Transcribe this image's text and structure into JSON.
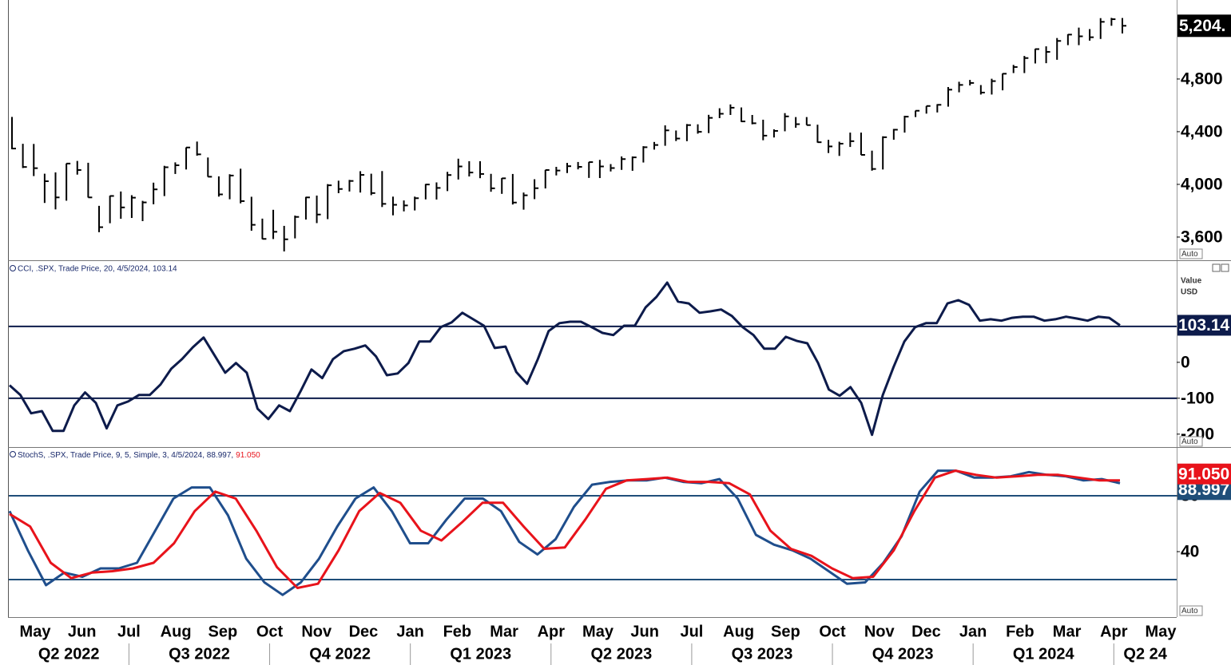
{
  "chart_data": [
    {
      "type": "ohlc",
      "color": "#000000",
      "scale_mode": "Auto",
      "ylim": [
        3430,
        5327
      ],
      "yticks": [
        {
          "value": 3600,
          "label": "3,600"
        },
        {
          "value": 4000,
          "label": "4,000"
        },
        {
          "value": 4400,
          "label": "4,400"
        },
        {
          "value": 4800,
          "label": "4,800"
        }
      ],
      "last_value": {
        "value": 5204,
        "label": "5,204."
      },
      "high": [
        4512,
        4308,
        4307,
        4081,
        4091,
        4159,
        4178,
        4164,
        3837,
        3914,
        3946,
        3918,
        3875,
        4013,
        4141,
        4167,
        4281,
        4325,
        4204,
        4061,
        4077,
        4119,
        3906,
        3740,
        3807,
        3685,
        3763,
        3905,
        3915,
        4002,
        4028,
        4034,
        4100,
        4081,
        4101,
        3907,
        3878,
        3907,
        4003,
        4015,
        4095,
        4195,
        4176,
        4176,
        4080,
        4048,
        4079,
        3938,
        4039,
        4110,
        4133,
        4163,
        4170,
        4170,
        4186,
        4154,
        4212,
        4212,
        4290,
        4322,
        4448,
        4409,
        4458,
        4456,
        4528,
        4578,
        4607,
        4584,
        4527,
        4491,
        4418,
        4541,
        4511,
        4511,
        4453,
        4338,
        4324,
        4393,
        4393,
        4256,
        4365,
        4421,
        4521,
        4560,
        4595,
        4609,
        4739,
        4779,
        4793,
        4754,
        4802,
        4842,
        4907,
        4975,
        5030,
        5048,
        5111,
        5140,
        5190,
        5179,
        5262,
        5264,
        5263
      ],
      "low": [
        4267,
        4124,
        4063,
        3859,
        3810,
        3876,
        4074,
        3900,
        3637,
        3705,
        3739,
        3745,
        3721,
        3849,
        3911,
        4079,
        4113,
        4218,
        4057,
        3907,
        3887,
        3856,
        3648,
        3584,
        3585,
        3491,
        3590,
        3733,
        3706,
        3736,
        3933,
        3946,
        3938,
        3918,
        3828,
        3765,
        3795,
        3802,
        3886,
        3885,
        3949,
        4037,
        4060,
        4047,
        3944,
        3928,
        3847,
        3808,
        3888,
        3969,
        4068,
        4086,
        4114,
        4049,
        4048,
        4098,
        4110,
        4103,
        4166,
        4264,
        4293,
        4329,
        4328,
        4385,
        4389,
        4503,
        4527,
        4474,
        4456,
        4335,
        4356,
        4403,
        4430,
        4450,
        4317,
        4238,
        4216,
        4284,
        4223,
        4104,
        4113,
        4339,
        4393,
        4511,
        4537,
        4546,
        4590,
        4699,
        4751,
        4682,
        4682,
        4714,
        4845,
        4845,
        4918,
        4920,
        4946,
        5057,
        5057,
        5091,
        5104,
        5204,
        5146
      ],
      "close": [
        4272,
        4132,
        4123,
        4024,
        3901,
        4158,
        4109,
        3901,
        3675,
        3912,
        3825,
        3899,
        3863,
        3962,
        4130,
        4145,
        4280,
        4228,
        4058,
        3924,
        4067,
        3873,
        3693,
        3586,
        3640,
        3583,
        3753,
        3901,
        3771,
        3993,
        3965,
        4026,
        4072,
        3934,
        3852,
        3845,
        3840,
        3895,
        3999,
        3973,
        4071,
        4136,
        4090,
        4079,
        3970,
        4046,
        3862,
        3917,
        3971,
        4109,
        4105,
        4138,
        4133,
        4169,
        4136,
        4124,
        4192,
        4205,
        4282,
        4299,
        4410,
        4348,
        4450,
        4399,
        4505,
        4536,
        4582,
        4478,
        4464,
        4370,
        4406,
        4516,
        4457,
        4450,
        4320,
        4288,
        4309,
        4328,
        4224,
        4117,
        4358,
        4415,
        4514,
        4559,
        4595,
        4604,
        4719,
        4755,
        4770,
        4697,
        4784,
        4840,
        4891,
        4959,
        5027,
        5006,
        5089,
        5137,
        5124,
        5117,
        5234,
        5254,
        5204
      ]
    },
    {
      "type": "line",
      "title": "CCI, .SPX, Trade Price, 20, 4/5/2024, 103.14",
      "scale_mode": "Auto",
      "y_unit_labels": [
        "Value",
        "USD"
      ],
      "ylim": [
        -236,
        282
      ],
      "yticks": [
        0,
        -100,
        -200
      ],
      "levels": [
        100,
        -100
      ],
      "level_color": "#0d1b4b",
      "series": [
        {
          "name": "CCI",
          "color": "#0d1b4b",
          "values": [
            -64,
            -91,
            -142,
            -136,
            -191,
            -191,
            -120,
            -84,
            -113,
            -184,
            -120,
            -109,
            -91,
            -91,
            -62,
            -18,
            9,
            42,
            69,
            20,
            -29,
            -2,
            -29,
            -129,
            -158,
            -120,
            -136,
            -80,
            -20,
            -44,
            9,
            31,
            38,
            47,
            16,
            -36,
            -31,
            -2,
            58,
            58,
            98,
            111,
            138,
            120,
            102,
            40,
            44,
            -27,
            -60,
            9,
            87,
            109,
            113,
            113,
            98,
            82,
            76,
            102,
            102,
            153,
            182,
            222,
            169,
            164,
            138,
            142,
            147,
            129,
            98,
            76,
            38,
            38,
            71,
            60,
            53,
            -2,
            -76,
            -93,
            -69,
            -113,
            -202,
            -91,
            -13,
            58,
            98,
            109,
            109,
            164,
            173,
            160,
            116,
            120,
            116,
            124,
            127,
            127,
            116,
            120,
            127,
            122,
            116,
            127,
            124,
            103.14
          ]
        }
      ]
    },
    {
      "type": "line",
      "title": "StochS, .SPX, Trade Price, 9, 5, Simple, 3, 4/5/2024, 88.997,",
      "title_last": "91.050",
      "scale_mode": "Auto",
      "ylim": [
        -6.3,
        114.9
      ],
      "yticks": [
        40,
        80
      ],
      "levels": [
        80,
        20
      ],
      "level_color": "#1f4e79",
      "series": [
        {
          "name": "%K",
          "color": "#1f4e8c",
          "values": [
            69,
            41,
            16,
            25,
            22,
            28,
            28,
            32,
            55,
            78,
            86,
            86,
            66,
            35,
            18,
            9,
            18,
            35,
            58,
            78,
            86,
            69,
            46,
            46,
            63,
            78,
            78,
            69,
            47,
            38,
            49,
            72,
            88,
            90,
            91,
            91,
            93,
            90,
            89,
            92,
            78,
            52,
            45,
            41,
            35,
            26,
            17,
            18,
            32,
            51,
            83,
            98,
            98,
            93,
            93,
            94,
            97,
            95,
            94,
            91,
            92,
            88.997
          ]
        },
        {
          "name": "%D",
          "color": "#e8131b",
          "last_label": "91.050",
          "values": [
            67,
            58,
            32,
            21,
            25,
            26,
            28,
            32,
            46,
            69,
            83,
            78,
            55,
            29,
            14,
            17,
            41,
            69,
            82,
            75,
            55,
            48,
            61,
            75,
            75,
            58,
            42,
            43,
            63,
            85,
            91,
            92,
            93,
            90,
            90,
            89,
            81,
            55,
            42,
            37,
            28,
            21,
            22,
            41,
            69,
            93,
            98,
            95,
            93,
            94,
            95,
            95,
            93,
            91,
            91.05
          ]
        }
      ]
    }
  ],
  "x_axis": {
    "months": [
      "May",
      "Jun",
      "Jul",
      "Aug",
      "Sep",
      "Oct",
      "Nov",
      "Dec",
      "Jan",
      "Feb",
      "Mar",
      "Apr",
      "May",
      "Jun",
      "Jul",
      "Aug",
      "Sep",
      "Oct",
      "Nov",
      "Dec",
      "Jan",
      "Feb",
      "Mar",
      "Apr",
      "May"
    ],
    "quarters": [
      "Q2 2022",
      "Q3 2022",
      "Q4 2022",
      "Q1 2023",
      "Q2 2023",
      "Q3 2023",
      "Q4 2023",
      "Q1 2024",
      "Q2 24"
    ]
  }
}
